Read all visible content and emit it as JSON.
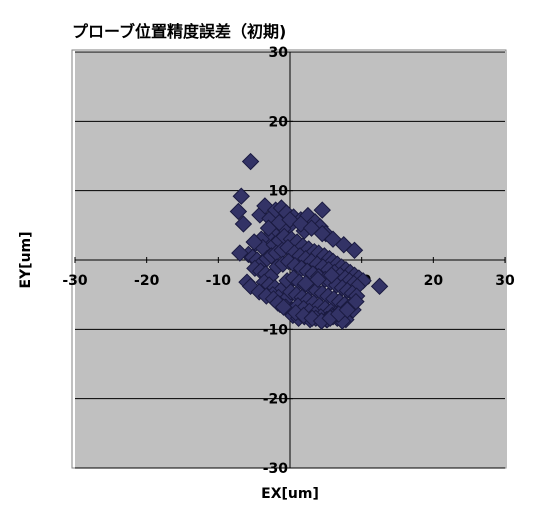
{
  "chart_data": {
    "type": "scatter",
    "title": "プローブ位置精度誤差（初期)",
    "xlabel": "EX[um]",
    "ylabel": "EY[um]",
    "xlim": [
      -30,
      30
    ],
    "ylim": [
      -30,
      30
    ],
    "xticks": [
      -30,
      -20,
      -10,
      0,
      10,
      20,
      30
    ],
    "yticks": [
      -30,
      -20,
      -10,
      10,
      20,
      30
    ],
    "xtick_labels": [
      "-30",
      "-20",
      "-10",
      "0",
      "10",
      "20",
      "30"
    ],
    "ytick_labels": [
      "-30",
      "-20",
      "-10",
      "10",
      "20",
      "30"
    ],
    "grid": "horizontal",
    "legend": "none",
    "colors": {
      "plot_background": "#C0C0C0",
      "marker_fill": "#333366",
      "marker_edge": "#1A1A40",
      "gridline": "#000000",
      "frame": "#808080"
    },
    "series": [
      {
        "marker": "diamond",
        "x": [
          -5.5,
          -6.8,
          -7.2,
          -6.5,
          -4.2,
          -3.5,
          -2.8,
          -2.0,
          -1.2,
          -0.5,
          0.5,
          1.5,
          2.5,
          3.5,
          4.2,
          4.5,
          5.0,
          2.0,
          0.0,
          -1.0,
          -2.5,
          -3.0,
          -4.0,
          -4.8,
          -3.8,
          -2.2,
          -1.5,
          -0.8,
          0.2,
          1.0,
          1.8,
          2.6,
          3.4,
          4.0,
          4.8,
          5.5,
          6.0,
          6.6,
          7.2,
          7.8,
          8.4,
          9.0,
          9.6,
          10.2,
          12.5,
          -5.8,
          -5.2,
          -4.6,
          -3.9,
          -3.2,
          -2.6,
          -1.9,
          -1.1,
          -0.3,
          0.6,
          1.4,
          2.2,
          3.0,
          3.8,
          4.6,
          5.4,
          6.2,
          7.0,
          7.7,
          8.3,
          8.9,
          9.4,
          -4.9,
          -4.1,
          -3.4,
          -2.7,
          -1.8,
          -1.0,
          -0.2,
          0.7,
          1.6,
          2.4,
          3.2,
          4.0,
          4.9,
          5.7,
          6.5,
          7.3,
          8.0,
          8.7,
          9.3,
          -3.6,
          -2.9,
          -2.1,
          -1.3,
          -0.4,
          0.5,
          1.3,
          2.1,
          2.9,
          3.7,
          4.5,
          5.3,
          6.1,
          6.9,
          7.6,
          8.2,
          8.8,
          -2.4,
          -1.6,
          -0.7,
          0.1,
          0.9,
          1.7,
          2.5,
          3.3,
          4.1,
          4.9,
          5.7,
          6.4,
          7.1,
          7.8,
          -1.4,
          -0.6,
          0.3,
          1.1,
          1.9,
          2.7,
          3.5,
          4.3,
          5.1,
          5.9,
          6.6,
          7.3,
          0.4,
          1.2,
          2.0,
          2.8,
          3.6,
          4.4,
          5.2,
          6.0,
          6.7,
          -6.0,
          -5.5,
          -4.3,
          -3.3,
          -2.3,
          -1.7,
          -0.9,
          0.8,
          1.9,
          3.1,
          4.4,
          5.6,
          6.8,
          8.0,
          9.2,
          -3.0,
          -1.5,
          0.0,
          1.5,
          3.0,
          4.5,
          6.0,
          7.5,
          9.0,
          -7.0,
          -5.0,
          2.2,
          3.9,
          5.8
        ],
        "y": [
          14.2,
          9.2,
          7.0,
          5.2,
          6.5,
          7.8,
          6.0,
          7.2,
          7.5,
          6.8,
          6.2,
          5.8,
          6.4,
          5.5,
          4.8,
          7.2,
          3.8,
          4.2,
          5.0,
          4.5,
          4.0,
          3.2,
          3.0,
          2.4,
          1.8,
          2.2,
          2.8,
          3.4,
          3.0,
          2.6,
          2.0,
          1.6,
          1.2,
          1.0,
          0.6,
          0.2,
          -0.2,
          -0.6,
          -1.0,
          -1.4,
          -1.8,
          -2.2,
          -2.6,
          -3.0,
          -3.8,
          0.8,
          0.4,
          0.0,
          -0.4,
          0.2,
          0.6,
          1.0,
          1.4,
          1.8,
          1.0,
          0.6,
          0.2,
          -0.2,
          -0.6,
          -1.0,
          -1.4,
          -1.8,
          -2.2,
          -2.6,
          -3.0,
          -3.4,
          -3.8,
          -1.2,
          -1.6,
          -2.0,
          -2.4,
          -1.0,
          -0.6,
          -0.2,
          -0.8,
          -1.2,
          -1.6,
          -2.0,
          -2.4,
          -2.8,
          -3.2,
          -3.6,
          -4.0,
          -4.4,
          -4.8,
          -5.2,
          -3.2,
          -3.6,
          -4.0,
          -4.4,
          -3.0,
          -2.6,
          -3.2,
          -3.6,
          -4.0,
          -4.4,
          -4.8,
          -5.2,
          -5.6,
          -6.0,
          -6.4,
          -6.8,
          -7.2,
          -5.0,
          -5.4,
          -5.8,
          -4.6,
          -5.0,
          -5.4,
          -5.8,
          -6.2,
          -6.6,
          -7.0,
          -7.4,
          -7.8,
          -8.2,
          -8.6,
          -6.4,
          -6.8,
          -7.2,
          -6.6,
          -7.0,
          -7.4,
          -7.8,
          -8.2,
          -8.6,
          -8.0,
          -8.4,
          -8.8,
          -8.0,
          -8.4,
          -8.2,
          -8.6,
          -8.4,
          -8.8,
          -8.6,
          -8.2,
          -7.8,
          -3.2,
          -3.8,
          -4.6,
          -5.2,
          -5.6,
          -6.2,
          -6.8,
          -7.6,
          -8.0,
          -8.4,
          -8.8,
          -8.4,
          -7.8,
          -7.2,
          -6.0,
          4.6,
          5.4,
          5.8,
          5.2,
          4.6,
          3.8,
          3.0,
          2.2,
          1.4,
          1.0,
          2.6,
          -3.4,
          -2.8,
          -2.2
        ]
      }
    ]
  }
}
